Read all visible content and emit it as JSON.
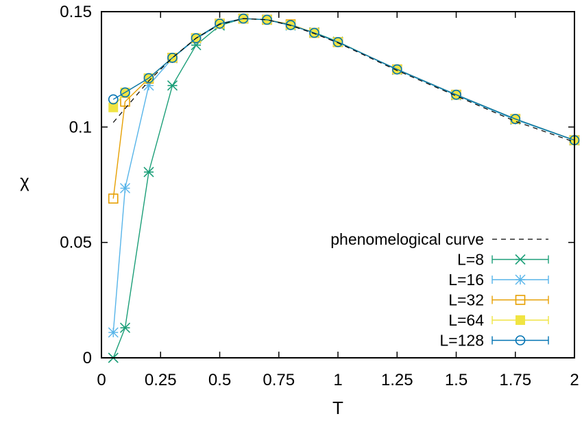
{
  "chart_data": {
    "type": "line",
    "xlabel": "T",
    "ylabel": "χ",
    "xlim": [
      0,
      2
    ],
    "ylim": [
      0,
      0.15
    ],
    "xticks": [
      "0",
      "0.25",
      "0.5",
      "0.75",
      "1",
      "1.25",
      "1.5",
      "1.75",
      "2"
    ],
    "xtick_values": [
      0,
      0.25,
      0.5,
      0.75,
      1,
      1.25,
      1.5,
      1.75,
      2
    ],
    "yticks": [
      "0",
      "0.05",
      "0.1",
      "0.15"
    ],
    "ytick_values": [
      0,
      0.05,
      0.1,
      0.15
    ],
    "grid": false,
    "legend_position": "bottom-right",
    "curve": {
      "name": "phenomelogical curve",
      "color": "#000000",
      "style": "dashed",
      "x": [
        0.05,
        0.1,
        0.2,
        0.3,
        0.4,
        0.5,
        0.6,
        0.7,
        0.8,
        0.9,
        1.0,
        1.25,
        1.5,
        1.75,
        2.0
      ],
      "y": [
        0.102,
        0.108,
        0.12,
        0.13,
        0.1385,
        0.1445,
        0.147,
        0.1465,
        0.144,
        0.1405,
        0.1365,
        0.1245,
        0.1135,
        0.1025,
        0.0935
      ]
    },
    "series": [
      {
        "name": "L=8",
        "color": "#1a9e77",
        "marker": "star-x",
        "x": [
          0.05,
          0.1,
          0.2,
          0.3,
          0.4,
          0.5,
          0.6,
          0.7,
          0.8,
          0.9,
          1.0,
          1.25,
          1.5,
          1.75,
          2.0
        ],
        "y": [
          0.0,
          0.013,
          0.0805,
          0.118,
          0.1355,
          0.144,
          0.147,
          0.1465,
          0.144,
          0.141,
          0.137,
          0.1248,
          0.1138,
          0.1032,
          0.0942
        ]
      },
      {
        "name": "L=16",
        "color": "#56b4e9",
        "marker": "asterisk",
        "x": [
          0.05,
          0.1,
          0.2,
          0.3,
          0.4,
          0.5,
          0.6,
          0.7,
          0.8,
          0.9,
          1.0,
          1.25,
          1.5,
          1.75,
          2.0
        ],
        "y": [
          0.011,
          0.0735,
          0.118,
          0.1298,
          0.1382,
          0.1445,
          0.147,
          0.1465,
          0.144,
          0.1408,
          0.1368,
          0.1248,
          0.1138,
          0.1032,
          0.0942
        ]
      },
      {
        "name": "L=32",
        "color": "#e69f00",
        "marker": "open-square",
        "x": [
          0.05,
          0.1,
          0.2,
          0.3,
          0.4,
          0.5,
          0.6,
          0.7,
          0.8,
          0.9,
          1.0,
          1.25,
          1.5,
          1.75,
          2.0
        ],
        "y": [
          0.069,
          0.111,
          0.121,
          0.13,
          0.1385,
          0.1448,
          0.147,
          0.1465,
          0.1445,
          0.1408,
          0.1368,
          0.125,
          0.114,
          0.1035,
          0.0943
        ]
      },
      {
        "name": "L=64",
        "color": "#f0e442",
        "marker": "filled-square",
        "x": [
          0.05,
          0.1,
          0.2,
          0.3,
          0.4,
          0.5,
          0.6,
          0.7,
          0.8,
          0.9,
          1.0,
          1.25,
          1.5,
          1.75,
          2.0
        ],
        "y": [
          0.1085,
          0.115,
          0.1212,
          0.13,
          0.1385,
          0.1448,
          0.147,
          0.1465,
          0.1442,
          0.1408,
          0.1368,
          0.125,
          0.114,
          0.1035,
          0.0943
        ]
      },
      {
        "name": "L=128",
        "color": "#0072b2",
        "marker": "open-circle",
        "x": [
          0.05,
          0.1,
          0.2,
          0.3,
          0.4,
          0.5,
          0.6,
          0.7,
          0.8,
          0.9,
          1.0,
          1.25,
          1.5,
          1.75,
          2.0
        ],
        "y": [
          0.112,
          0.115,
          0.1212,
          0.13,
          0.1385,
          0.1448,
          0.147,
          0.1465,
          0.1442,
          0.1408,
          0.1368,
          0.125,
          0.114,
          0.1035,
          0.0943
        ]
      }
    ]
  }
}
